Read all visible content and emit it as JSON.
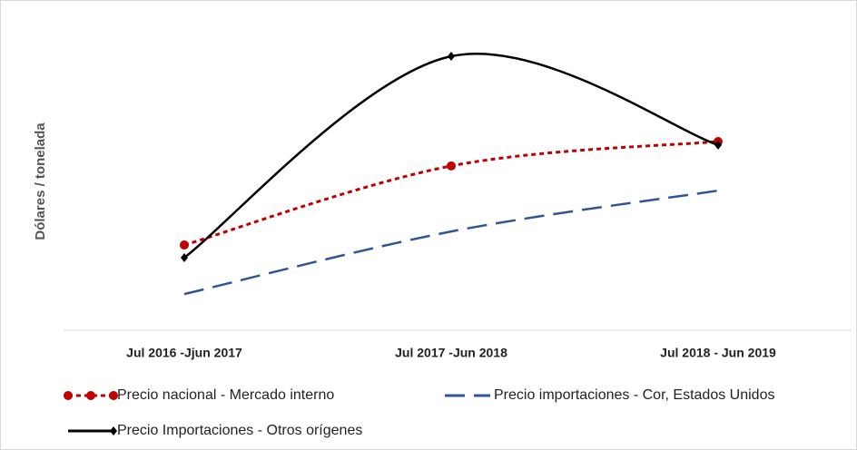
{
  "chart_data": {
    "type": "line",
    "y_label": "Dólares / tonelada",
    "categories": [
      "Jul 2016 -Jjun 2017",
      "Jul 2017 -Jun 2018",
      "Jul 2018 - Jun 2019"
    ],
    "series": [
      {
        "name": "Precio nacional - Mercado interno",
        "color": "#c00000",
        "dash": "dotted",
        "marker": "circle",
        "values": [
          29,
          55.9,
          64.2
        ]
      },
      {
        "name": "Precio importaciones - Cor, Estados Unidos",
        "color": "#2f5597",
        "dash": "dashed",
        "marker": "none",
        "values": [
          12.3,
          33.6,
          47.5
        ]
      },
      {
        "name": "Precio Importaciones - Otros orígenes",
        "color": "#000000",
        "dash": "solid",
        "marker": "diamond",
        "values": [
          24.7,
          93.2,
          63
        ]
      }
    ],
    "ylim": [
      0,
      100
    ]
  }
}
